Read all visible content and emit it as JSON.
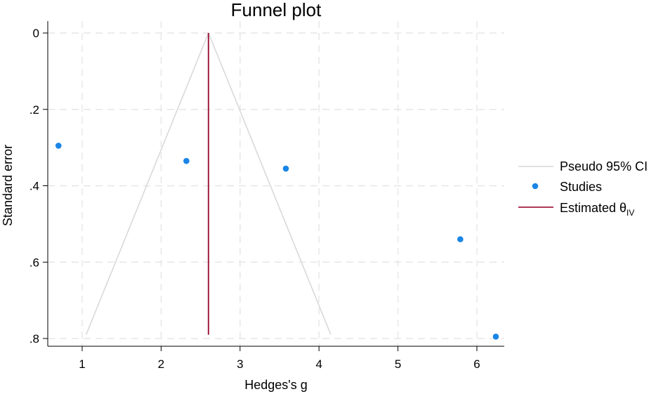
{
  "chart_data": {
    "type": "scatter",
    "title": "Funnel plot",
    "xlabel": "Hedges's g",
    "ylabel": "Standard error",
    "xlim": [
      0.6,
      6.35
    ],
    "ylim": [
      0,
      0.8
    ],
    "y_reversed": true,
    "grid": true,
    "x_ticks": [
      1,
      2,
      3,
      4,
      5,
      6
    ],
    "y_ticks": [
      0,
      0.2,
      0.4,
      0.6,
      0.8
    ],
    "y_tick_labels": [
      "0",
      ".2",
      ".4",
      ".6",
      ".8"
    ],
    "estimate": 2.6,
    "series": [
      {
        "name": "Pseudo 95% CI",
        "kind": "line",
        "color": "#d9d9d9",
        "points": [
          {
            "x": 1.05,
            "y": 0.79
          },
          {
            "x": 2.6,
            "y": 0
          },
          {
            "x": 4.15,
            "y": 0.79
          }
        ]
      },
      {
        "name": "Studies",
        "kind": "points",
        "color": "#1a85e6",
        "points": [
          {
            "x": 0.7,
            "y": 0.295
          },
          {
            "x": 2.32,
            "y": 0.335
          },
          {
            "x": 3.58,
            "y": 0.355
          },
          {
            "x": 5.79,
            "y": 0.54
          },
          {
            "x": 6.24,
            "y": 0.795
          }
        ]
      },
      {
        "name": "Estimated θ",
        "name_subscript": "IV",
        "kind": "vline",
        "color": "#a31d3d",
        "x": 2.6,
        "y_range": [
          0,
          0.79
        ]
      }
    ],
    "legend_position": "right"
  }
}
